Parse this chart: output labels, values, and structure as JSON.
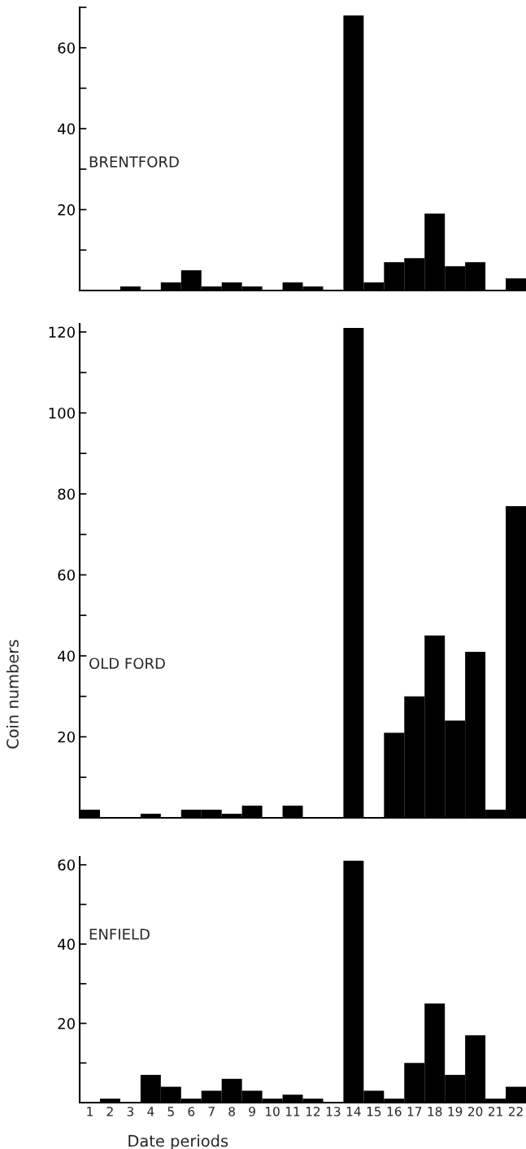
{
  "chart_data": [
    {
      "type": "bar",
      "title": "BRENTFORD",
      "categories": [
        "1",
        "2",
        "3",
        "4",
        "5",
        "6",
        "7",
        "8",
        "9",
        "10",
        "11",
        "12",
        "13",
        "14",
        "15",
        "16",
        "17",
        "18",
        "19",
        "20",
        "21",
        "22"
      ],
      "values": [
        0,
        0,
        1,
        0,
        2,
        5,
        1,
        2,
        1,
        0,
        2,
        1,
        0,
        68,
        2,
        7,
        8,
        19,
        6,
        7,
        0,
        3
      ],
      "color": "#000000",
      "ylim": [
        0,
        70
      ],
      "yticks": [
        {
          "value": 10,
          "label": null
        },
        20,
        {
          "value": 30,
          "label": null
        },
        40,
        {
          "value": 50,
          "label": null
        },
        60,
        {
          "value": 70,
          "label": null
        }
      ],
      "tick_labels": "y"
    },
    {
      "type": "bar",
      "title": "OLD FORD",
      "ylabel": "Coin numbers",
      "categories": [
        "1",
        "2",
        "3",
        "4",
        "5",
        "6",
        "7",
        "8",
        "9",
        "10",
        "11",
        "12",
        "13",
        "14",
        "15",
        "16",
        "17",
        "18",
        "19",
        "20",
        "21",
        "22"
      ],
      "values": [
        2,
        0,
        0,
        1,
        0,
        2,
        2,
        1,
        3,
        0,
        3,
        0,
        0,
        121,
        0,
        21,
        30,
        45,
        24,
        41,
        2,
        77
      ],
      "color": "#000000",
      "ylim": [
        0,
        122
      ],
      "yticks": [
        {
          "value": 10,
          "label": null
        },
        20,
        {
          "value": 30,
          "label": null
        },
        40,
        {
          "value": 50,
          "label": null
        },
        60,
        {
          "value": 70,
          "label": null
        },
        80,
        {
          "value": 90,
          "label": null
        },
        100,
        {
          "value": 110,
          "label": null
        },
        120
      ],
      "tick_labels": "y"
    },
    {
      "type": "bar",
      "title": "ENFIELD",
      "xlabel": "Date periods",
      "categories": [
        "1",
        "2",
        "3",
        "4",
        "5",
        "6",
        "7",
        "8",
        "9",
        "10",
        "11",
        "12",
        "13",
        "14",
        "15",
        "16",
        "17",
        "18",
        "19",
        "20",
        "21",
        "22"
      ],
      "values": [
        0,
        1,
        0,
        7,
        4,
        1,
        3,
        6,
        3,
        1,
        2,
        1,
        0,
        61,
        3,
        1,
        10,
        25,
        7,
        17,
        1,
        4
      ],
      "color": "#000000",
      "ylim": [
        0,
        62
      ],
      "yticks": [
        {
          "value": 10,
          "label": null
        },
        20,
        {
          "value": 30,
          "label": null
        },
        40,
        {
          "value": 50,
          "label": null
        },
        60
      ]
    }
  ]
}
